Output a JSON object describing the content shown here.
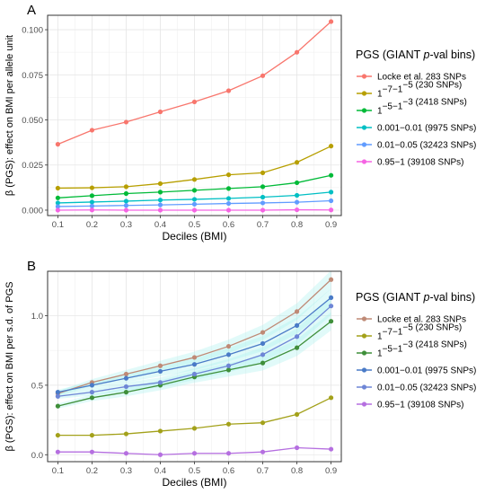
{
  "chart_data": [
    {
      "type": "line",
      "panel_label": "A",
      "xlabel": "Deciles (BMI)",
      "ylabel": "β (PGS): effect on BMI per allele unit",
      "x": [
        0.1,
        0.2,
        0.3,
        0.4,
        0.5,
        0.6,
        0.7,
        0.8,
        0.9
      ],
      "xticks": [
        "0.1",
        "0.2",
        "0.3",
        "0.4",
        "0.5",
        "0.6",
        "0.7",
        "0.8",
        "0.9"
      ],
      "xlim": [
        0.07,
        0.93
      ],
      "ylim": [
        -0.003,
        0.108
      ],
      "yticks": [
        0.0,
        0.025,
        0.05,
        0.075,
        0.1
      ],
      "ytick_labels": [
        "0.000",
        "0.025",
        "0.050",
        "0.075",
        "0.100"
      ],
      "grid": true,
      "legend_title": "PGS (GIANT p-val bins)",
      "legend_position": "right",
      "series": [
        {
          "name": "Locke et al. 283 SNPs",
          "color": "#f8766d",
          "values": [
            0.0365,
            0.0443,
            0.0488,
            0.0545,
            0.06,
            0.0662,
            0.0745,
            0.0875,
            0.1045
          ]
        },
        {
          "name": "1e−7−1e−5 (230 SNPs)",
          "color": "#b79f00",
          "values": [
            0.0122,
            0.0124,
            0.013,
            0.0147,
            0.017,
            0.0196,
            0.0207,
            0.0265,
            0.0355
          ]
        },
        {
          "name": "1e−5−1e−3 (2418 SNPs)",
          "color": "#00ba38",
          "values": [
            0.0068,
            0.008,
            0.0092,
            0.01,
            0.011,
            0.012,
            0.013,
            0.0152,
            0.0193
          ]
        },
        {
          "name": "0.001−0.01 (9975 SNPs)",
          "color": "#00bfc4",
          "values": [
            0.004,
            0.0045,
            0.005,
            0.0056,
            0.006,
            0.0065,
            0.0072,
            0.0082,
            0.01
          ]
        },
        {
          "name": "0.01−0.05 (32423 SNPs)",
          "color": "#619cff",
          "values": [
            0.002,
            0.0023,
            0.0026,
            0.0029,
            0.0033,
            0.0037,
            0.004,
            0.0044,
            0.0052
          ]
        },
        {
          "name": "0.95−1 (39108 SNPs)",
          "color": "#f564e3",
          "values": [
            0.0,
            0.0001,
            0.0,
            0.0,
            0.0,
            0.0,
            0.0,
            0.0002,
            0.0001
          ]
        }
      ]
    },
    {
      "type": "line",
      "panel_label": "B",
      "xlabel": "Deciles (BMI)",
      "ylabel": "β (PGS): effect on BMI per s.d. of PGS",
      "x": [
        0.1,
        0.2,
        0.3,
        0.4,
        0.5,
        0.6,
        0.7,
        0.8,
        0.9
      ],
      "xticks": [
        "0.1",
        "0.2",
        "0.3",
        "0.4",
        "0.5",
        "0.6",
        "0.7",
        "0.8",
        "0.9"
      ],
      "xlim": [
        0.07,
        0.93
      ],
      "ylim": [
        -0.05,
        1.32
      ],
      "yticks": [
        0.0,
        0.5,
        1.0
      ],
      "ytick_labels": [
        "0.0",
        "0.5",
        "1.0"
      ],
      "grid": true,
      "confidence_band": true,
      "legend_title": "PGS (GIANT p-val bins)",
      "legend_position": "right",
      "series": [
        {
          "name": "Locke et al. 283 SNPs",
          "color": "#bf8a76",
          "values": [
            0.44,
            0.52,
            0.58,
            0.64,
            0.7,
            0.78,
            0.88,
            1.03,
            1.26
          ]
        },
        {
          "name": "1e−7−1e−5 (230 SNPs)",
          "color": "#a3a11a",
          "values": [
            0.14,
            0.14,
            0.15,
            0.17,
            0.19,
            0.22,
            0.23,
            0.29,
            0.41
          ]
        },
        {
          "name": "1e−5−1e−3 (2418 SNPs)",
          "color": "#3f8f3a",
          "values": [
            0.35,
            0.41,
            0.45,
            0.5,
            0.56,
            0.61,
            0.66,
            0.77,
            0.96
          ]
        },
        {
          "name": "0.001−0.01 (9975 SNPs)",
          "color": "#4a7bc7",
          "values": [
            0.45,
            0.5,
            0.55,
            0.6,
            0.65,
            0.72,
            0.8,
            0.93,
            1.13
          ]
        },
        {
          "name": "0.01−0.05 (32423 SNPs)",
          "color": "#6e86d6",
          "values": [
            0.42,
            0.45,
            0.49,
            0.52,
            0.58,
            0.64,
            0.72,
            0.85,
            1.07
          ]
        },
        {
          "name": "0.95−1 (39108 SNPs)",
          "color": "#b56fe0",
          "values": [
            0.02,
            0.02,
            0.01,
            0.0,
            0.01,
            0.01,
            0.02,
            0.05,
            0.04
          ]
        }
      ]
    }
  ]
}
